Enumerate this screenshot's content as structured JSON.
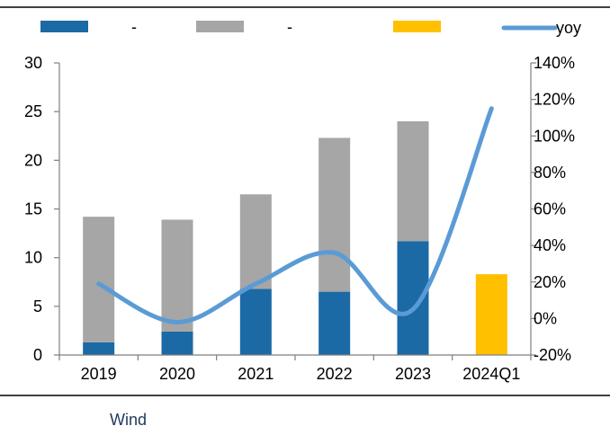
{
  "chart_data": {
    "type": "bar",
    "stacked": true,
    "categories": [
      "2019",
      "2020",
      "2021",
      "2022",
      "2023",
      "2024Q1"
    ],
    "series": [
      {
        "name": "-",
        "kind": "bar",
        "axis": "left",
        "color": "#1b6aa5",
        "values": [
          1.3,
          2.4,
          6.8,
          6.5,
          11.7,
          0
        ]
      },
      {
        "name": "-",
        "kind": "bar",
        "axis": "left",
        "color": "#a6a6a6",
        "values": [
          12.9,
          11.5,
          9.7,
          15.8,
          12.3,
          0
        ]
      },
      {
        "name": "",
        "kind": "bar",
        "axis": "left",
        "color": "#ffc000",
        "values": [
          0,
          0,
          0,
          0,
          0,
          8.3
        ]
      },
      {
        "name": "yoy",
        "kind": "line",
        "axis": "right",
        "color": "#5b9bd5",
        "values": [
          19,
          -2,
          19,
          36,
          5,
          115
        ]
      }
    ],
    "y_left": {
      "min": 0,
      "max": 30,
      "ticks": [
        "0",
        "5",
        "10",
        "15",
        "20",
        "25",
        "30"
      ]
    },
    "y_right": {
      "min": -20,
      "max": 140,
      "ticks": [
        "-20%",
        "0%",
        "20%",
        "40%",
        "60%",
        "80%",
        "100%",
        "120%",
        "140%"
      ]
    },
    "legend_position": "top",
    "grid": false,
    "source": "Wind"
  }
}
